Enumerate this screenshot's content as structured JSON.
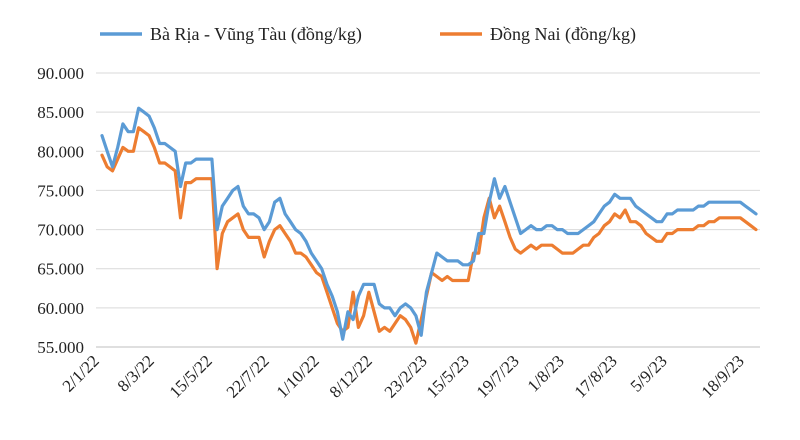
{
  "chart_data": {
    "type": "line",
    "title": "",
    "xlabel": "",
    "ylabel": "",
    "ylim": [
      55000,
      90000
    ],
    "y_ticks": [
      "55.000",
      "60.000",
      "65.000",
      "70.000",
      "75.000",
      "80.000",
      "85.000",
      "90.000"
    ],
    "y_tick_values": [
      55000,
      60000,
      65000,
      70000,
      75000,
      80000,
      85000,
      90000
    ],
    "x_tick_labels": [
      "2/1/22",
      "8/3/22",
      "15/5/22",
      "22/7/22",
      "1/10/22",
      "8/12/22",
      "23/2/23",
      "15/5/23",
      "19/7/23",
      "1/8/23",
      "17/8/23",
      "5/9/23",
      "18/9/23"
    ],
    "x_tick_index": [
      0,
      8,
      17,
      25,
      35,
      43,
      52,
      63,
      71,
      79,
      87,
      95,
      103
    ],
    "grid": true,
    "legend_position": "top",
    "series": [
      {
        "name": "Bà Rịa - Vũng Tàu (đồng/kg)",
        "color": "#5b9bd5",
        "values": [
          82000,
          80000,
          78000,
          80500,
          83500,
          82500,
          82500,
          85500,
          85000,
          84500,
          83000,
          81000,
          81000,
          80500,
          80000,
          75500,
          78500,
          78500,
          79000,
          79000,
          79000,
          79000,
          70000,
          73000,
          74000,
          75000,
          75500,
          73000,
          72000,
          72000,
          71500,
          70000,
          71000,
          73500,
          74000,
          72000,
          71000,
          70000,
          69500,
          68500,
          67000,
          66000,
          65000,
          63000,
          61500,
          59500,
          56000,
          59500,
          58500,
          61500,
          63000,
          63000,
          63000,
          60500,
          60000,
          60000,
          59000,
          60000,
          60500,
          60000,
          59000,
          56500,
          62000,
          64500,
          67000,
          66500,
          66000,
          66000,
          66000,
          65500,
          65500,
          66000,
          69500,
          69500,
          73500,
          76500,
          74000,
          75500,
          73500,
          71500,
          69500,
          70000,
          70500,
          70000,
          70000,
          70500,
          70500,
          70000,
          70000,
          69500,
          69500,
          69500,
          70000,
          70500,
          71000,
          72000,
          73000,
          73500,
          74500,
          74000,
          74000,
          74000,
          73000,
          72500,
          72000,
          71500,
          71000,
          71000,
          72000,
          72000,
          72500,
          72500,
          72500,
          72500,
          73000,
          73000,
          73500,
          73500,
          73500,
          73500,
          73500,
          73500,
          73500,
          73000,
          72500,
          72000
        ]
      },
      {
        "name": "Đồng Nai (đồng/kg)",
        "color": "#ed7d31",
        "values": [
          79500,
          78000,
          77500,
          79000,
          80500,
          80000,
          80000,
          83000,
          82500,
          82000,
          80500,
          78500,
          78500,
          78000,
          77500,
          71500,
          76000,
          76000,
          76500,
          76500,
          76500,
          76500,
          65000,
          69500,
          71000,
          71500,
          72000,
          70000,
          69000,
          69000,
          69000,
          66500,
          68500,
          70000,
          70500,
          69500,
          68500,
          67000,
          67000,
          66500,
          65500,
          64500,
          64000,
          62000,
          60000,
          58000,
          57000,
          57500,
          62000,
          57500,
          59000,
          62000,
          59500,
          57000,
          57500,
          57000,
          58000,
          59000,
          58500,
          57500,
          55500,
          58500,
          61500,
          64500,
          64000,
          63500,
          64000,
          63500,
          63500,
          63500,
          63500,
          67000,
          67000,
          71500,
          74000,
          71500,
          73000,
          71000,
          69000,
          67500,
          67000,
          67500,
          68000,
          67500,
          68000,
          68000,
          68000,
          67500,
          67000,
          67000,
          67000,
          67500,
          68000,
          68000,
          69000,
          69500,
          70500,
          71000,
          72000,
          71500,
          72500,
          71000,
          71000,
          70500,
          69500,
          69000,
          68500,
          68500,
          69500,
          69500,
          70000,
          70000,
          70000,
          70000,
          70500,
          70500,
          71000,
          71000,
          71500,
          71500,
          71500,
          71500,
          71500,
          71000,
          70500,
          70000
        ]
      }
    ]
  }
}
